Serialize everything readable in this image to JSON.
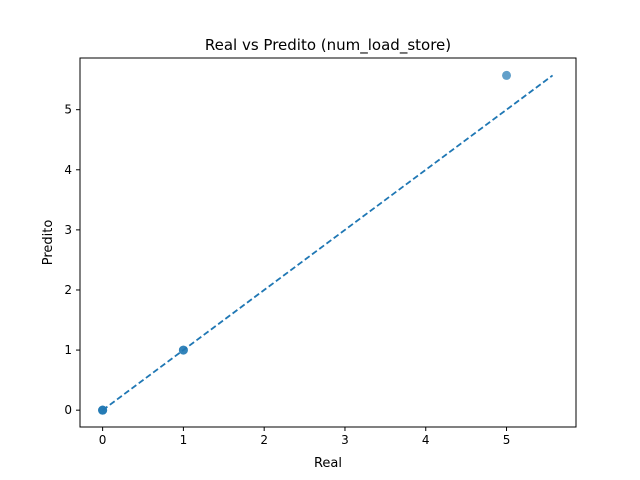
{
  "chart_data": {
    "type": "scatter",
    "title": "Real vs Predito (num_load_store)",
    "xlabel": "Real",
    "ylabel": "Predito",
    "xlim": [
      -0.28,
      5.86
    ],
    "ylim": [
      -0.28,
      5.86
    ],
    "xticks": [
      "0",
      "1",
      "2",
      "3",
      "4",
      "5"
    ],
    "yticks": [
      "0",
      "1",
      "2",
      "3",
      "4",
      "5"
    ],
    "grid": false,
    "series": [
      {
        "points": [
          {
            "x": 0,
            "y": 0
          },
          {
            "x": 0,
            "y": 0
          },
          {
            "x": 0,
            "y": 0
          },
          {
            "x": 1,
            "y": 1
          },
          {
            "x": 1,
            "y": 1
          },
          {
            "x": 5,
            "y": 5.57
          }
        ]
      }
    ],
    "reference_line": {
      "style": "dashed",
      "from": [
        0,
        0
      ],
      "to": [
        5.57,
        5.57
      ]
    },
    "colors": {
      "points": "#1f77b4",
      "line": "#1f77b4",
      "axes": "#000000"
    }
  }
}
